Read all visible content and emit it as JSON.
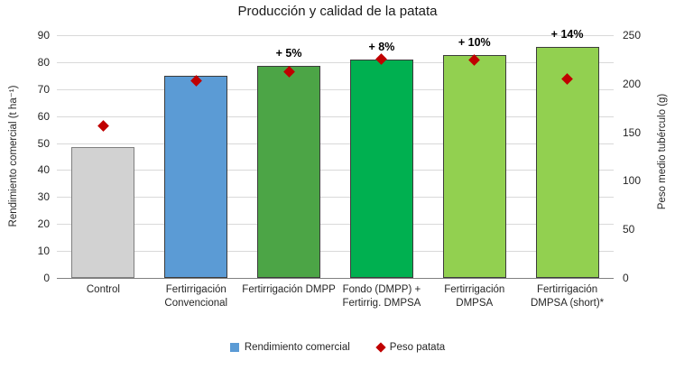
{
  "chart_data": {
    "type": "bar",
    "title": "Producción y calidad de la patata",
    "categories": [
      "Control",
      "Fertirrigación Convencional",
      "Fertirrigación DMPP",
      "Fondo (DMPP) + Fertirrig. DMPSA",
      "Fertirrigación DMPSA",
      "Fertirrigación DMPSA (short)*"
    ],
    "series": [
      {
        "name": "Rendimiento comercial",
        "type": "bar",
        "axis": "left",
        "values": [
          48.5,
          75,
          78.75,
          81,
          82.5,
          85.5
        ],
        "fills": [
          "#d2d2d2",
          "#5b9bd5",
          "#4ca546",
          "#00b050",
          "#92d050",
          "#92d050"
        ],
        "borders": [
          "#808080",
          "#3c3c3c",
          "#3c3c3c",
          "#3c3c3c",
          "#3c3c3c",
          "#3c3c3c"
        ],
        "bar_labels": [
          "",
          "",
          "+ 5%",
          "+ 8%",
          "+ 10%",
          "+ 14%"
        ]
      },
      {
        "name": "Peso patata",
        "type": "scatter",
        "axis": "right",
        "marker": "diamond",
        "color": "#c00000",
        "values": [
          157,
          203,
          212,
          225,
          224,
          205
        ]
      }
    ],
    "left_axis": {
      "label": "Rendimiento comercial (t ha⁻¹)",
      "min": 0,
      "max": 90,
      "tick_step": 10
    },
    "right_axis": {
      "label": "Peso medio tubérculo (g)",
      "min": 0,
      "max": 250,
      "tick_step": 50
    },
    "grid": true,
    "gridline_color": "#d9d9d9",
    "axis_line_color": "#808080",
    "legend": {
      "position": "bottom",
      "items": [
        {
          "label": "Rendimiento comercial",
          "marker": "square",
          "color": "#5b9bd5"
        },
        {
          "label": "Peso patata",
          "marker": "diamond",
          "color": "#c00000"
        }
      ]
    }
  }
}
